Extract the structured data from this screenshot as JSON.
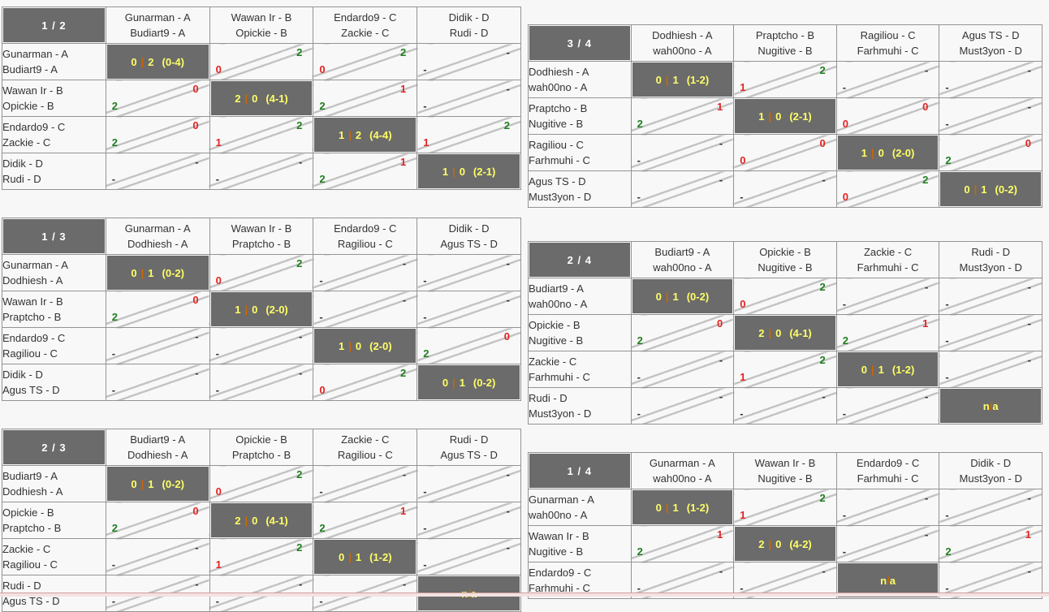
{
  "colors": {
    "page_background": "#f7f7f7",
    "dark_cell": "#6b6b6b",
    "result_yellow": "#ffff66",
    "separator_orange": "#cc6600",
    "win_green": "#1e7d1e",
    "loss_red": "#e32222",
    "dash_dark": "#333333",
    "border_gray": "#949494",
    "diagonal_line": "#c3c3c3",
    "bottom_bar_pink": "#f5e1e1"
  },
  "tables": [
    {
      "label": "1 / 2",
      "cols": [
        {
          "l1": "Gunarman - A",
          "l2": "Budiart9 - A"
        },
        {
          "l1": "Wawan Ir - B",
          "l2": "Opickie - B"
        },
        {
          "l1": "Endardo9 - C",
          "l2": "Zackie - C"
        },
        {
          "l1": "Didik - D",
          "l2": "Rudi - D"
        }
      ],
      "rows": [
        {
          "l1": "Gunarman - A",
          "l2": "Budiart9 - A",
          "cells": [
            {
              "t": "res",
              "a": "0",
              "sep": "|",
              "b": "2",
              "d": "(0-4)"
            },
            {
              "t": "p",
              "top": "2",
              "tc": "g",
              "bot": "0",
              "bc": "r"
            },
            {
              "t": "p",
              "top": "2",
              "tc": "g",
              "bot": "0",
              "bc": "r"
            },
            {
              "t": "p",
              "top": "-",
              "tc": "d",
              "bot": "-",
              "bc": "d"
            }
          ]
        },
        {
          "l1": "Wawan Ir - B",
          "l2": "Opickie - B",
          "cells": [
            {
              "t": "p",
              "top": "0",
              "tc": "r",
              "bot": "2",
              "bc": "g"
            },
            {
              "t": "res",
              "a": "2",
              "sep": "|",
              "b": "0",
              "d": "(4-1)"
            },
            {
              "t": "p",
              "top": "1",
              "tc": "r",
              "bot": "2",
              "bc": "g"
            },
            {
              "t": "p",
              "top": "-",
              "tc": "d",
              "bot": "-",
              "bc": "d"
            }
          ]
        },
        {
          "l1": "Endardo9 - C",
          "l2": "Zackie - C",
          "cells": [
            {
              "t": "p",
              "top": "0",
              "tc": "r",
              "bot": "2",
              "bc": "g"
            },
            {
              "t": "p",
              "top": "2",
              "tc": "g",
              "bot": "1",
              "bc": "r"
            },
            {
              "t": "res",
              "a": "1",
              "sep": "|",
              "b": "2",
              "d": "(4-4)"
            },
            {
              "t": "p",
              "top": "2",
              "tc": "g",
              "bot": "1",
              "bc": "r"
            }
          ]
        },
        {
          "l1": "Didik - D",
          "l2": "Rudi - D",
          "cells": [
            {
              "t": "p",
              "top": "-",
              "tc": "d",
              "bot": "-",
              "bc": "d"
            },
            {
              "t": "p",
              "top": "-",
              "tc": "d",
              "bot": "-",
              "bc": "d"
            },
            {
              "t": "p",
              "top": "1",
              "tc": "r",
              "bot": "2",
              "bc": "g"
            },
            {
              "t": "res",
              "a": "1",
              "sep": "|",
              "b": "0",
              "d": "(2-1)"
            }
          ]
        }
      ]
    },
    {
      "label": "1 / 3",
      "cols": [
        {
          "l1": "Gunarman - A",
          "l2": "Dodhiesh - A"
        },
        {
          "l1": "Wawan Ir - B",
          "l2": "Praptcho - B"
        },
        {
          "l1": "Endardo9 - C",
          "l2": "Ragiliou - C"
        },
        {
          "l1": "Didik - D",
          "l2": "Agus TS - D"
        }
      ],
      "rows": [
        {
          "l1": "Gunarman - A",
          "l2": "Dodhiesh - A",
          "cells": [
            {
              "t": "res",
              "a": "0",
              "sep": "|",
              "b": "1",
              "d": "(0-2)"
            },
            {
              "t": "p",
              "top": "2",
              "tc": "g",
              "bot": "0",
              "bc": "r"
            },
            {
              "t": "p",
              "top": "-",
              "tc": "d",
              "bot": "-",
              "bc": "d"
            },
            {
              "t": "p",
              "top": "-",
              "tc": "d",
              "bot": "-",
              "bc": "d"
            }
          ]
        },
        {
          "l1": "Wawan Ir - B",
          "l2": "Praptcho - B",
          "cells": [
            {
              "t": "p",
              "top": "0",
              "tc": "r",
              "bot": "2",
              "bc": "g"
            },
            {
              "t": "res",
              "a": "1",
              "sep": "|",
              "b": "0",
              "d": "(2-0)"
            },
            {
              "t": "p",
              "top": "-",
              "tc": "d",
              "bot": "-",
              "bc": "d"
            },
            {
              "t": "p",
              "top": "-",
              "tc": "d",
              "bot": "-",
              "bc": "d"
            }
          ]
        },
        {
          "l1": "Endardo9 - C",
          "l2": "Ragiliou - C",
          "cells": [
            {
              "t": "p",
              "top": "-",
              "tc": "d",
              "bot": "-",
              "bc": "d"
            },
            {
              "t": "p",
              "top": "-",
              "tc": "d",
              "bot": "-",
              "bc": "d"
            },
            {
              "t": "res",
              "a": "1",
              "sep": "|",
              "b": "0",
              "d": "(2-0)"
            },
            {
              "t": "p",
              "top": "0",
              "tc": "r",
              "bot": "2",
              "bc": "g"
            }
          ]
        },
        {
          "l1": "Didik - D",
          "l2": "Agus TS - D",
          "cells": [
            {
              "t": "p",
              "top": "-",
              "tc": "d",
              "bot": "-",
              "bc": "d"
            },
            {
              "t": "p",
              "top": "-",
              "tc": "d",
              "bot": "-",
              "bc": "d"
            },
            {
              "t": "p",
              "top": "2",
              "tc": "g",
              "bot": "0",
              "bc": "r"
            },
            {
              "t": "res",
              "a": "0",
              "sep": "|",
              "b": "1",
              "d": "(0-2)"
            }
          ]
        }
      ]
    },
    {
      "label": "2 / 3",
      "cols": [
        {
          "l1": "Budiart9 - A",
          "l2": "Dodhiesh - A"
        },
        {
          "l1": "Opickie - B",
          "l2": "Praptcho - B"
        },
        {
          "l1": "Zackie - C",
          "l2": "Ragiliou - C"
        },
        {
          "l1": "Rudi - D",
          "l2": "Agus TS - D"
        }
      ],
      "rows": [
        {
          "l1": "Budiart9 - A",
          "l2": "Dodhiesh - A",
          "cells": [
            {
              "t": "res",
              "a": "0",
              "sep": "|",
              "b": "1",
              "d": "(0-2)"
            },
            {
              "t": "p",
              "top": "2",
              "tc": "g",
              "bot": "0",
              "bc": "r"
            },
            {
              "t": "p",
              "top": "-",
              "tc": "d",
              "bot": "-",
              "bc": "d"
            },
            {
              "t": "p",
              "top": "-",
              "tc": "d",
              "bot": "-",
              "bc": "d"
            }
          ]
        },
        {
          "l1": "Opickie - B",
          "l2": "Praptcho - B",
          "cells": [
            {
              "t": "p",
              "top": "0",
              "tc": "r",
              "bot": "2",
              "bc": "g"
            },
            {
              "t": "res",
              "a": "2",
              "sep": "|",
              "b": "0",
              "d": "(4-1)"
            },
            {
              "t": "p",
              "top": "1",
              "tc": "r",
              "bot": "2",
              "bc": "g"
            },
            {
              "t": "p",
              "top": "-",
              "tc": "d",
              "bot": "-",
              "bc": "d"
            }
          ]
        },
        {
          "l1": "Zackie - C",
          "l2": "Ragiliou - C",
          "cells": [
            {
              "t": "p",
              "top": "-",
              "tc": "d",
              "bot": "-",
              "bc": "d"
            },
            {
              "t": "p",
              "top": "2",
              "tc": "g",
              "bot": "1",
              "bc": "r"
            },
            {
              "t": "res",
              "a": "0",
              "sep": "|",
              "b": "1",
              "d": "(1-2)"
            },
            {
              "t": "p",
              "top": "-",
              "tc": "d",
              "bot": "-",
              "bc": "d"
            }
          ]
        },
        {
          "l1": "Rudi - D",
          "l2": "Agus TS - D",
          "cells": [
            {
              "t": "p",
              "top": "-",
              "tc": "d",
              "bot": "-",
              "bc": "d"
            },
            {
              "t": "p",
              "top": "-",
              "tc": "d",
              "bot": "-",
              "bc": "d"
            },
            {
              "t": "p",
              "top": "-",
              "tc": "d",
              "bot": "-",
              "bc": "d"
            },
            {
              "t": "na",
              "a": "n",
              "sep": "/",
              "b": "a",
              "d": ""
            }
          ]
        }
      ]
    },
    {
      "label": "3 / 4",
      "cols": [
        {
          "l1": "Dodhiesh - A",
          "l2": "wah00no - A"
        },
        {
          "l1": "Praptcho - B",
          "l2": "Nugitive - B"
        },
        {
          "l1": "Ragiliou - C",
          "l2": "Farhmuhi - C"
        },
        {
          "l1": "Agus TS - D",
          "l2": "Must3yon - D"
        }
      ],
      "rows": [
        {
          "l1": "Dodhiesh - A",
          "l2": "wah00no - A",
          "cells": [
            {
              "t": "res",
              "a": "0",
              "sep": "|",
              "b": "1",
              "d": "(1-2)"
            },
            {
              "t": "p",
              "top": "2",
              "tc": "g",
              "bot": "1",
              "bc": "r"
            },
            {
              "t": "p",
              "top": "-",
              "tc": "d",
              "bot": "-",
              "bc": "d"
            },
            {
              "t": "p",
              "top": "-",
              "tc": "d",
              "bot": "-",
              "bc": "d"
            }
          ]
        },
        {
          "l1": "Praptcho - B",
          "l2": "Nugitive - B",
          "cells": [
            {
              "t": "p",
              "top": "1",
              "tc": "r",
              "bot": "2",
              "bc": "g"
            },
            {
              "t": "res",
              "a": "1",
              "sep": "|",
              "b": "0",
              "d": "(2-1)"
            },
            {
              "t": "p",
              "top": "0",
              "tc": "r",
              "bot": "0",
              "bc": "r"
            },
            {
              "t": "p",
              "top": "-",
              "tc": "d",
              "bot": "-",
              "bc": "d"
            }
          ]
        },
        {
          "l1": "Ragiliou - C",
          "l2": "Farhmuhi - C",
          "cells": [
            {
              "t": "p",
              "top": "-",
              "tc": "d",
              "bot": "-",
              "bc": "d"
            },
            {
              "t": "p",
              "top": "0",
              "tc": "r",
              "bot": "0",
              "bc": "r"
            },
            {
              "t": "res",
              "a": "1",
              "sep": "|",
              "b": "0",
              "d": "(2-0)"
            },
            {
              "t": "p",
              "top": "0",
              "tc": "r",
              "bot": "2",
              "bc": "g"
            }
          ]
        },
        {
          "l1": "Agus TS - D",
          "l2": "Must3yon - D",
          "cells": [
            {
              "t": "p",
              "top": "-",
              "tc": "d",
              "bot": "-",
              "bc": "d"
            },
            {
              "t": "p",
              "top": "-",
              "tc": "d",
              "bot": "-",
              "bc": "d"
            },
            {
              "t": "p",
              "top": "2",
              "tc": "g",
              "bot": "0",
              "bc": "r"
            },
            {
              "t": "res",
              "a": "0",
              "sep": "|",
              "b": "1",
              "d": "(0-2)"
            }
          ]
        }
      ]
    },
    {
      "label": "2 / 4",
      "cols": [
        {
          "l1": "Budiart9 - A",
          "l2": "wah00no - A"
        },
        {
          "l1": "Opickie - B",
          "l2": "Nugitive - B"
        },
        {
          "l1": "Zackie - C",
          "l2": "Farhmuhi - C"
        },
        {
          "l1": "Rudi - D",
          "l2": "Must3yon - D"
        }
      ],
      "rows": [
        {
          "l1": "Budiart9 - A",
          "l2": "wah00no - A",
          "cells": [
            {
              "t": "res",
              "a": "0",
              "sep": "|",
              "b": "1",
              "d": "(0-2)"
            },
            {
              "t": "p",
              "top": "2",
              "tc": "g",
              "bot": "0",
              "bc": "r"
            },
            {
              "t": "p",
              "top": "-",
              "tc": "d",
              "bot": "-",
              "bc": "d"
            },
            {
              "t": "p",
              "top": "-",
              "tc": "d",
              "bot": "-",
              "bc": "d"
            }
          ]
        },
        {
          "l1": "Opickie - B",
          "l2": "Nugitive - B",
          "cells": [
            {
              "t": "p",
              "top": "0",
              "tc": "r",
              "bot": "2",
              "bc": "g"
            },
            {
              "t": "res",
              "a": "2",
              "sep": "|",
              "b": "0",
              "d": "(4-1)"
            },
            {
              "t": "p",
              "top": "1",
              "tc": "r",
              "bot": "2",
              "bc": "g"
            },
            {
              "t": "p",
              "top": "-",
              "tc": "d",
              "bot": "-",
              "bc": "d"
            }
          ]
        },
        {
          "l1": "Zackie - C",
          "l2": "Farhmuhi - C",
          "cells": [
            {
              "t": "p",
              "top": "-",
              "tc": "d",
              "bot": "-",
              "bc": "d"
            },
            {
              "t": "p",
              "top": "2",
              "tc": "g",
              "bot": "1",
              "bc": "r"
            },
            {
              "t": "res",
              "a": "0",
              "sep": "|",
              "b": "1",
              "d": "(1-2)"
            },
            {
              "t": "p",
              "top": "-",
              "tc": "d",
              "bot": "-",
              "bc": "d"
            }
          ]
        },
        {
          "l1": "Rudi - D",
          "l2": "Must3yon - D",
          "cells": [
            {
              "t": "p",
              "top": "-",
              "tc": "d",
              "bot": "-",
              "bc": "d"
            },
            {
              "t": "p",
              "top": "-",
              "tc": "d",
              "bot": "-",
              "bc": "d"
            },
            {
              "t": "p",
              "top": "-",
              "tc": "d",
              "bot": "-",
              "bc": "d"
            },
            {
              "t": "na",
              "a": "n",
              "sep": "/",
              "b": "a",
              "d": ""
            }
          ]
        }
      ]
    },
    {
      "label": "1 / 4",
      "cols": [
        {
          "l1": "Gunarman - A",
          "l2": "wah00no - A"
        },
        {
          "l1": "Wawan Ir - B",
          "l2": "Nugitive - B"
        },
        {
          "l1": "Endardo9 - C",
          "l2": "Farhmuhi - C"
        },
        {
          "l1": "Didik - D",
          "l2": "Must3yon - D"
        }
      ],
      "rows": [
        {
          "l1": "Gunarman - A",
          "l2": "wah00no - A",
          "cells": [
            {
              "t": "res",
              "a": "0",
              "sep": "|",
              "b": "1",
              "d": "(1-2)"
            },
            {
              "t": "p",
              "top": "2",
              "tc": "g",
              "bot": "1",
              "bc": "r"
            },
            {
              "t": "p",
              "top": "-",
              "tc": "d",
              "bot": "-",
              "bc": "d"
            },
            {
              "t": "p",
              "top": "-",
              "tc": "d",
              "bot": "-",
              "bc": "d"
            }
          ]
        },
        {
          "l1": "Wawan Ir - B",
          "l2": "Nugitive - B",
          "cells": [
            {
              "t": "p",
              "top": "1",
              "tc": "r",
              "bot": "2",
              "bc": "g"
            },
            {
              "t": "res",
              "a": "2",
              "sep": "|",
              "b": "0",
              "d": "(4-2)"
            },
            {
              "t": "p",
              "top": "-",
              "tc": "d",
              "bot": "-",
              "bc": "d"
            },
            {
              "t": "p",
              "top": "1",
              "tc": "r",
              "bot": "2",
              "bc": "g"
            }
          ]
        },
        {
          "l1": "Endardo9 - C",
          "l2": "Farhmuhi - C",
          "cells": [
            {
              "t": "p",
              "top": "-",
              "tc": "d",
              "bot": "-",
              "bc": "d"
            },
            {
              "t": "p",
              "top": "-",
              "tc": "d",
              "bot": "-",
              "bc": "d"
            },
            {
              "t": "na",
              "a": "n",
              "sep": "/",
              "b": "a",
              "d": ""
            },
            {
              "t": "p",
              "top": "-",
              "tc": "d",
              "bot": "-",
              "bc": "d"
            }
          ]
        }
      ]
    }
  ]
}
